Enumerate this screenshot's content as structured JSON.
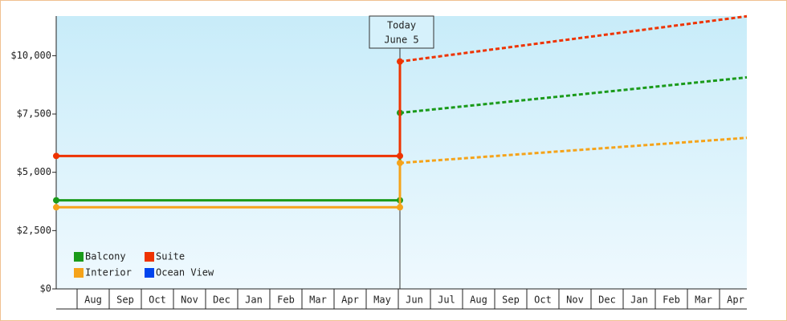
{
  "chart_data": {
    "type": "line",
    "ylim": [
      0,
      11700
    ],
    "yticks": [
      {
        "value": 0,
        "label": "$0"
      },
      {
        "value": 2500,
        "label": "$2,500"
      },
      {
        "value": 5000,
        "label": "$5,000"
      },
      {
        "value": 7500,
        "label": "$7,500"
      },
      {
        "value": 10000,
        "label": "$10,000"
      }
    ],
    "xlim": [
      -0.65,
      20.85
    ],
    "categories": [
      "Aug",
      "Sep",
      "Oct",
      "Nov",
      "Dec",
      "Jan",
      "Feb",
      "Mar",
      "Apr",
      "May",
      "Jun",
      "Jul",
      "Aug",
      "Sep",
      "Oct",
      "Nov",
      "Dec",
      "Jan",
      "Feb",
      "Mar",
      "Apr"
    ],
    "annotation": {
      "x": 10.05,
      "text": [
        "Today",
        "June 5"
      ]
    },
    "legend": "bottom-left",
    "series": [
      {
        "name": "Balcony",
        "color": "#1a9a1a",
        "x": [
          -0.65,
          10.05,
          10.05
        ],
        "values": [
          3800,
          3800,
          7550
        ],
        "projected_x": [
          10.05,
          20.85
        ],
        "projected_values": [
          7550,
          9070
        ]
      },
      {
        "name": "Suite",
        "color": "#ee3300",
        "x": [
          -0.65,
          10.05,
          10.05
        ],
        "values": [
          5700,
          5700,
          9750
        ],
        "projected_x": [
          10.05,
          20.85
        ],
        "projected_values": [
          9750,
          11690
        ]
      },
      {
        "name": "Interior",
        "color": "#f5a31a",
        "x": [
          -0.65,
          10.05,
          10.05
        ],
        "values": [
          3500,
          3500,
          5400
        ],
        "projected_x": [
          10.05,
          20.85
        ],
        "projected_values": [
          5400,
          6480
        ]
      },
      {
        "name": "Ocean View",
        "color": "#0044ee",
        "x": [],
        "values": [],
        "projected_x": [],
        "projected_values": []
      }
    ]
  }
}
